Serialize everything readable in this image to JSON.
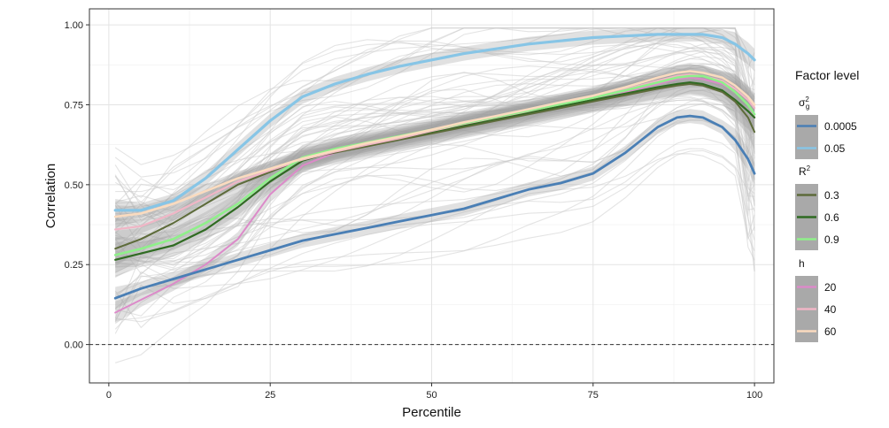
{
  "chart_data": {
    "type": "line",
    "xlabel": "Percentile",
    "ylabel": "Correlation",
    "xlim": [
      -3,
      103
    ],
    "ylim": [
      -0.12,
      1.05
    ],
    "x_ticks": [
      0,
      25,
      50,
      75,
      100
    ],
    "x_tick_labels": [
      "0",
      "25",
      "50",
      "75",
      "100"
    ],
    "y_ticks": [
      0.0,
      0.25,
      0.5,
      0.75,
      1.0
    ],
    "y_tick_labels": [
      "0.00",
      "0.25",
      "0.50",
      "0.75",
      "1.00"
    ],
    "grid": true,
    "hline": {
      "y": 0.0,
      "style": "dashed"
    },
    "legend": {
      "title": "Factor level",
      "position": "right",
      "groups": [
        {
          "title": "σ²g",
          "title_base": "σ",
          "title_sup": "2",
          "title_sub": "g",
          "entries": [
            {
              "label": "0.0005",
              "color": "#4a7fb5"
            },
            {
              "label": "0.05",
              "color": "#87c5e6"
            }
          ]
        },
        {
          "title": "R²",
          "title_base": "R",
          "title_sup": "2",
          "title_sub": "",
          "entries": [
            {
              "label": "0.3",
              "color": "#5d6b3a"
            },
            {
              "label": "0.6",
              "color": "#2f6b22"
            },
            {
              "label": "0.9",
              "color": "#8ff08a"
            }
          ]
        },
        {
          "title": "h",
          "title_base": "h",
          "title_sup": "",
          "title_sub": "",
          "entries": [
            {
              "label": "20",
              "color": "#dc8ac9"
            },
            {
              "label": "40",
              "color": "#f0b6c6"
            },
            {
              "label": "60",
              "color": "#fadbbf"
            }
          ]
        }
      ]
    },
    "x": [
      1,
      5,
      10,
      15,
      20,
      25,
      30,
      35,
      40,
      45,
      50,
      55,
      60,
      65,
      70,
      75,
      80,
      85,
      88,
      90,
      92,
      95,
      97,
      99,
      100
    ],
    "series": [
      {
        "name": "0.0005",
        "group": "σ²g",
        "color": "#4a7fb5",
        "width": 2.8,
        "values": [
          0.145,
          0.175,
          0.205,
          0.235,
          0.265,
          0.295,
          0.325,
          0.345,
          0.365,
          0.385,
          0.405,
          0.425,
          0.455,
          0.485,
          0.505,
          0.535,
          0.6,
          0.68,
          0.71,
          0.715,
          0.71,
          0.68,
          0.64,
          0.58,
          0.535
        ]
      },
      {
        "name": "0.05",
        "group": "σ²g",
        "color": "#87c5e6",
        "width": 3.2,
        "values": [
          0.42,
          0.42,
          0.45,
          0.52,
          0.61,
          0.7,
          0.775,
          0.815,
          0.845,
          0.87,
          0.89,
          0.91,
          0.925,
          0.94,
          0.95,
          0.96,
          0.965,
          0.97,
          0.97,
          0.97,
          0.97,
          0.96,
          0.94,
          0.91,
          0.89
        ]
      },
      {
        "name": "0.3",
        "group": "R²",
        "color": "#5d6b3a",
        "width": 2.0,
        "values": [
          0.3,
          0.33,
          0.38,
          0.44,
          0.5,
          0.54,
          0.58,
          0.6,
          0.62,
          0.64,
          0.66,
          0.68,
          0.7,
          0.72,
          0.74,
          0.76,
          0.78,
          0.8,
          0.81,
          0.815,
          0.81,
          0.79,
          0.76,
          0.71,
          0.665
        ]
      },
      {
        "name": "0.6",
        "group": "R²",
        "color": "#2f6b22",
        "width": 2.2,
        "values": [
          0.265,
          0.285,
          0.31,
          0.36,
          0.43,
          0.51,
          0.575,
          0.605,
          0.625,
          0.645,
          0.665,
          0.685,
          0.705,
          0.725,
          0.745,
          0.765,
          0.785,
          0.805,
          0.815,
          0.82,
          0.815,
          0.795,
          0.765,
          0.73,
          0.71
        ]
      },
      {
        "name": "0.9",
        "group": "R²",
        "color": "#8ff08a",
        "width": 2.6,
        "values": [
          0.28,
          0.3,
          0.33,
          0.38,
          0.44,
          0.52,
          0.585,
          0.612,
          0.632,
          0.652,
          0.672,
          0.692,
          0.712,
          0.732,
          0.752,
          0.772,
          0.795,
          0.82,
          0.835,
          0.84,
          0.84,
          0.82,
          0.79,
          0.75,
          0.72
        ]
      },
      {
        "name": "20",
        "group": "h",
        "color": "#dc8ac9",
        "width": 2.0,
        "values": [
          0.1,
          0.14,
          0.19,
          0.25,
          0.33,
          0.47,
          0.56,
          0.6,
          0.625,
          0.645,
          0.665,
          0.685,
          0.705,
          0.725,
          0.745,
          0.765,
          0.79,
          0.815,
          0.83,
          0.835,
          0.83,
          0.815,
          0.79,
          0.75,
          0.71
        ]
      },
      {
        "name": "40",
        "group": "h",
        "color": "#f0b6c6",
        "width": 2.2,
        "values": [
          0.36,
          0.37,
          0.41,
          0.46,
          0.51,
          0.545,
          0.578,
          0.603,
          0.625,
          0.645,
          0.668,
          0.69,
          0.71,
          0.73,
          0.752,
          0.772,
          0.798,
          0.825,
          0.84,
          0.845,
          0.84,
          0.825,
          0.8,
          0.765,
          0.74
        ]
      },
      {
        "name": "60",
        "group": "h",
        "color": "#fadbbf",
        "width": 2.6,
        "values": [
          0.4,
          0.41,
          0.44,
          0.48,
          0.52,
          0.55,
          0.582,
          0.607,
          0.63,
          0.65,
          0.672,
          0.695,
          0.715,
          0.736,
          0.758,
          0.778,
          0.805,
          0.835,
          0.85,
          0.855,
          0.85,
          0.835,
          0.81,
          0.775,
          0.75
        ]
      }
    ]
  }
}
